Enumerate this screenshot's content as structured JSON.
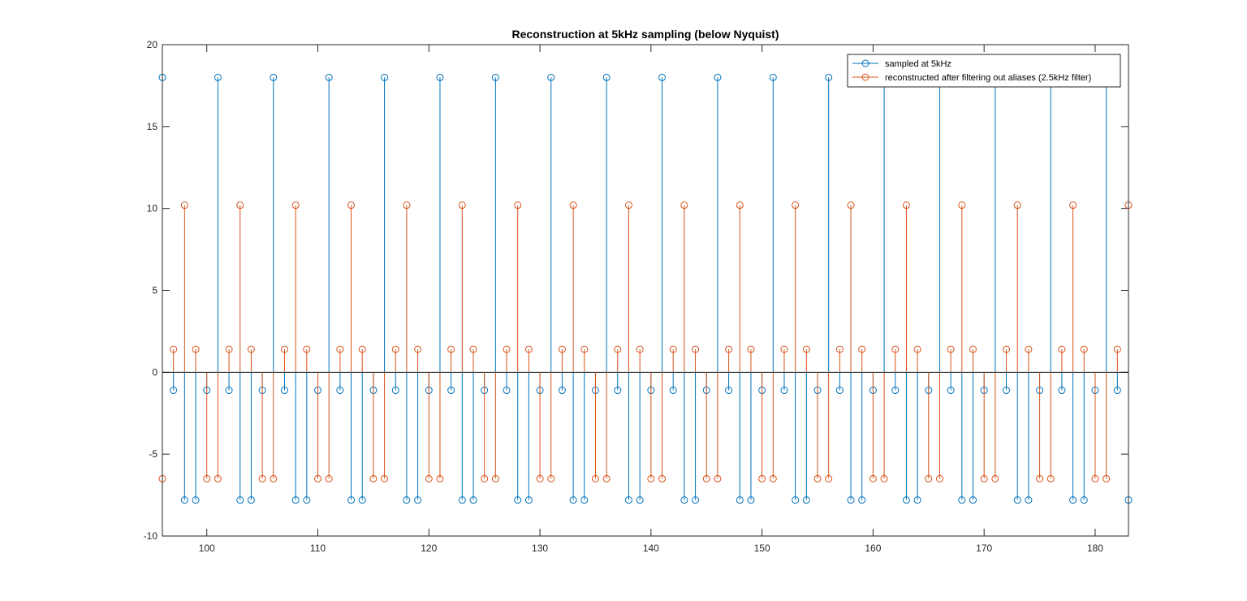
{
  "chart_data": {
    "type": "stem",
    "title": "Reconstruction at 5kHz sampling (below Nyquist)",
    "xlabel": "",
    "ylabel": "",
    "xlim": [
      96,
      183
    ],
    "ylim": [
      -10,
      20
    ],
    "xticks": [
      100,
      110,
      120,
      130,
      140,
      150,
      160,
      170,
      180
    ],
    "yticks": [
      -10,
      -5,
      0,
      5,
      10,
      15,
      20
    ],
    "grid": false,
    "legend_position": "top-right",
    "series": [
      {
        "name": "sampled at 5kHz",
        "color": "#0072BD",
        "marker": "circle",
        "pattern_period": 5,
        "pattern_start_x": 96,
        "pattern_values": [
          18.0,
          -1.1,
          -7.8,
          -7.8,
          -1.1
        ],
        "x_start": 96,
        "x_end": 183
      },
      {
        "name": "reconstructed after filtering out aliases (2.5kHz filter)",
        "color": "#D95319",
        "marker": "circle",
        "pattern_period": 5,
        "pattern_start_x": 96,
        "pattern_values": [
          -6.5,
          1.4,
          10.2,
          1.4,
          -6.5
        ],
        "x_start": 96,
        "x_end": 183
      }
    ]
  }
}
